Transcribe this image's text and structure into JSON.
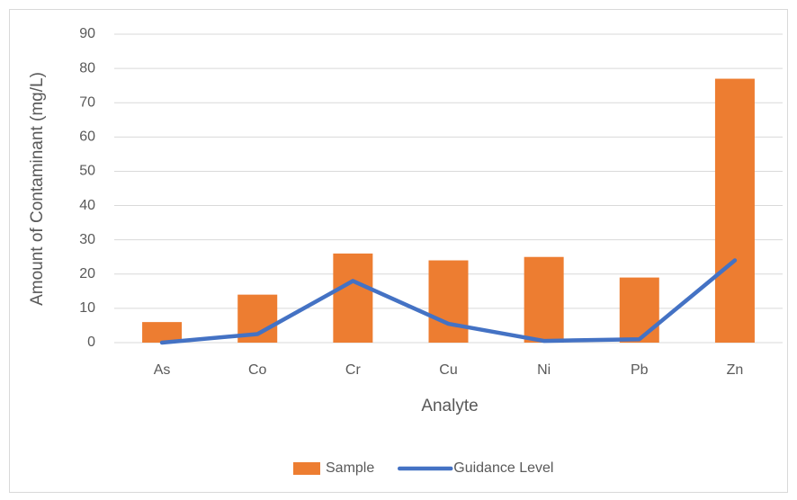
{
  "chart_data": {
    "type": "bar",
    "x_label": "Analyte",
    "y_label": "Amount of Contaminant (mg/L)",
    "categories": [
      "As",
      "Co",
      "Cr",
      "Cu",
      "Ni",
      "Pb",
      "Zn"
    ],
    "series": [
      {
        "name": "Sample",
        "type": "bar",
        "color": "#ed7d31",
        "values": [
          6,
          14,
          26,
          24,
          25,
          19,
          77
        ]
      },
      {
        "name": "Guidance Level",
        "type": "line",
        "color": "#4472c4",
        "values": [
          0,
          2.5,
          18,
          5.5,
          0.5,
          1,
          24
        ]
      }
    ],
    "ylim": [
      0,
      90
    ],
    "yticks": [
      0,
      10,
      20,
      30,
      40,
      50,
      60,
      70,
      80,
      90
    ],
    "grid": true,
    "legend": "bottom"
  }
}
